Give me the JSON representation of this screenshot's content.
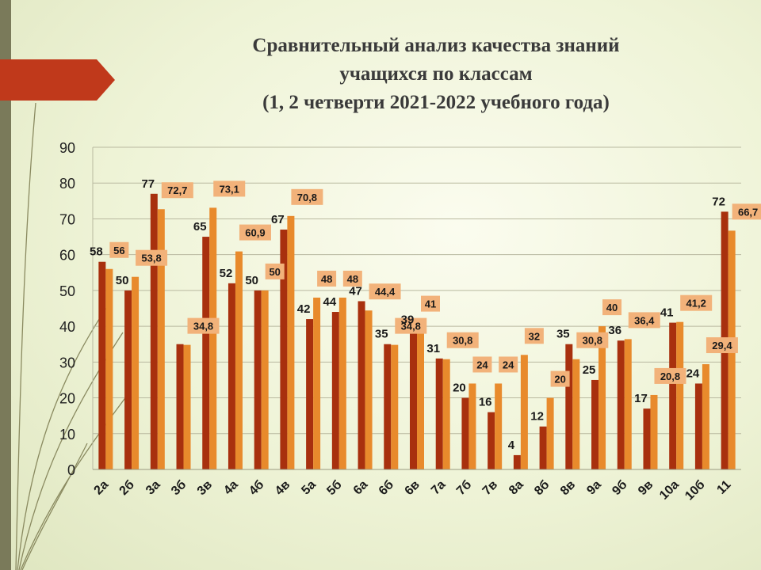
{
  "title": {
    "line1": "Сравнительный анализ качества знаний",
    "line2": "учащихся по классам",
    "line3": "(1, 2 четверти 2021-2022 учебного года)"
  },
  "colors": {
    "series1": "#a8300e",
    "series2": "#e88a2c",
    "label_box": "#f2b27a",
    "tab": "#c0391b"
  },
  "chart_data": {
    "type": "bar",
    "categories": [
      "2а",
      "2б",
      "3а",
      "3б",
      "3в",
      "4а",
      "4б",
      "4в",
      "5а",
      "5б",
      "6а",
      "6б",
      "6в",
      "7а",
      "7б",
      "7в",
      "8а",
      "8б",
      "8в",
      "9а",
      "9б",
      "9в",
      "10а",
      "10б",
      "11"
    ],
    "series": [
      {
        "values": [
          58,
          50,
          77,
          35,
          65,
          52,
          50,
          67,
          42,
          44,
          47,
          35,
          39,
          31,
          20,
          16,
          4,
          12,
          35,
          25,
          36,
          17,
          41,
          24,
          72
        ]
      },
      {
        "values": [
          56,
          53.8,
          72.7,
          34.8,
          73.1,
          60.9,
          50,
          70.8,
          48,
          48,
          44.4,
          34.8,
          41,
          30.8,
          24,
          24,
          32,
          20,
          30.8,
          40,
          36.4,
          20.8,
          41.2,
          29.4,
          66.7
        ]
      }
    ],
    "series1_labels": [
      "58",
      "50",
      "77",
      "",
      "65",
      "52",
      "50",
      "67",
      "42",
      "44",
      "47",
      "35",
      "39",
      "31",
      "20",
      "16",
      "4",
      "12",
      "35",
      "25",
      "36",
      "17",
      "41",
      "24",
      "72"
    ],
    "series2_labels": [
      "56",
      "53,8",
      "72,7",
      "34,8",
      "73,1",
      "60,9",
      "50",
      "70,8",
      "48",
      "48",
      "44,4",
      "34,8",
      "41",
      "30,8",
      "24",
      "24",
      "32",
      "20",
      "30,8",
      "40",
      "36,4",
      "20,8",
      "41,2",
      "29,4",
      "66,7"
    ],
    "yticks": [
      "0",
      "10",
      "20",
      "30",
      "40",
      "50",
      "60",
      "70",
      "80",
      "90"
    ],
    "ylim": [
      0,
      90
    ],
    "grid": true
  }
}
